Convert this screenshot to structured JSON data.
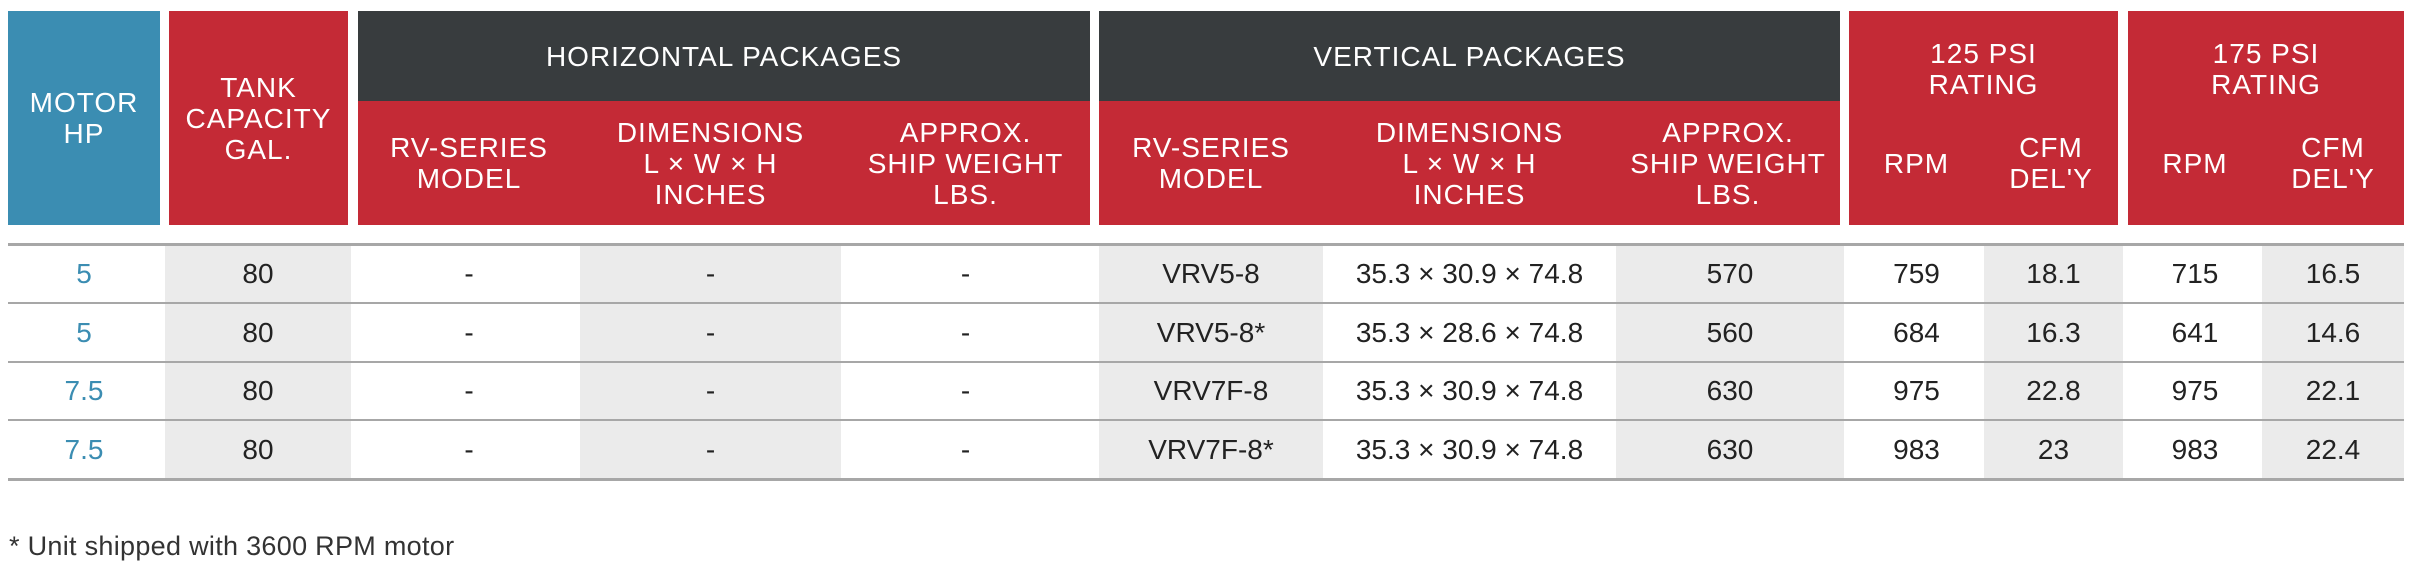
{
  "headers": {
    "motor_hp": "MOTOR\nHP",
    "tank_capacity": "TANK\nCAPACITY\nGAL.",
    "horizontal_packages": "HORIZONTAL PACKAGES",
    "vertical_packages": "VERTICAL PACKAGES",
    "psi125_rating": "125 PSI\nRATING",
    "psi175_rating": "175 PSI\nRATING",
    "rv_series_model": "RV-SERIES\nMODEL",
    "dimensions": "DIMENSIONS\nL × W × H\nINCHES",
    "approx_ship_weight": "APPROX.\nSHIP WEIGHT\nLBS.",
    "rpm": "RPM",
    "cfm_dely": "CFM\nDEL'Y"
  },
  "rows": [
    [
      "5",
      "80",
      "-",
      "-",
      "-",
      "VRV5-8",
      "35.3 × 30.9 × 74.8",
      "570",
      "759",
      "18.1",
      "715",
      "16.5"
    ],
    [
      "5",
      "80",
      "-",
      "-",
      "-",
      "VRV5-8*",
      "35.3 × 28.6 × 74.8",
      "560",
      "684",
      "16.3",
      "641",
      "14.6"
    ],
    [
      "7.5",
      "80",
      "-",
      "-",
      "-",
      "VRV7F-8",
      "35.3 × 30.9 × 74.8",
      "630",
      "975",
      "22.8",
      "975",
      "22.1"
    ],
    [
      "7.5",
      "80",
      "-",
      "-",
      "-",
      "VRV7F-8*",
      "35.3 × 30.9 × 74.8",
      "630",
      "983",
      "23",
      "983",
      "22.4"
    ]
  ],
  "footnote": "* Unit shipped with 3600 RPM motor",
  "colors": {
    "motor_header": "#3b8db2",
    "header_red": "#c42a36",
    "group_dark": "#383c3e",
    "shaded_column": "#ebebeb",
    "motor_text": "#3b8db2"
  }
}
